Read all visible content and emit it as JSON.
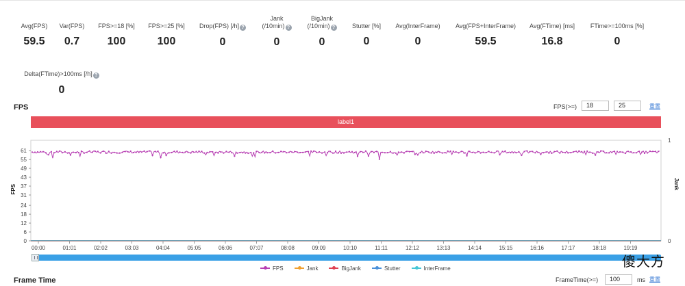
{
  "stats": [
    {
      "label": "Avg(FPS)",
      "value": "59.5",
      "help": false
    },
    {
      "label": "Var(FPS)",
      "value": "0.7",
      "help": false
    },
    {
      "label": "FPS>=18 [%]",
      "value": "100",
      "help": false
    },
    {
      "label": "FPS>=25 [%]",
      "value": "100",
      "help": false
    },
    {
      "label": "Drop(FPS) [/h]",
      "value": "0",
      "help": true
    },
    {
      "label": "Jank",
      "label2": "(/10min)",
      "value": "0",
      "help": true
    },
    {
      "label": "BigJank",
      "label2": "(/10min)",
      "value": "0",
      "help": true
    },
    {
      "label": "Stutter [%]",
      "value": "0",
      "help": false
    },
    {
      "label": "Avg(InterFrame)",
      "value": "0",
      "help": false
    },
    {
      "label": "Avg(FPS+InterFrame)",
      "value": "59.5",
      "help": false
    },
    {
      "label": "Avg(FTime) [ms]",
      "value": "16.8",
      "help": false
    },
    {
      "label": "FTime>=100ms [%]",
      "value": "0",
      "help": false
    },
    {
      "label": "Delta(FTime)>100ms [/h]",
      "value": "0",
      "help": true
    }
  ],
  "help_glyph": "?",
  "fps_section": {
    "title": "FPS",
    "threshold_label": "FPS(>=)",
    "threshold_1": "18",
    "threshold_2": "25",
    "reset_link": "重置",
    "label_band": "label1"
  },
  "chart_data": {
    "type": "line",
    "ylabel": "FPS",
    "y2label": "Jank",
    "yticks": [
      0,
      6,
      12,
      18,
      24,
      31,
      37,
      43,
      49,
      55,
      61
    ],
    "ylim": [
      0,
      68
    ],
    "y2ticks": [
      0,
      1
    ],
    "xticks": [
      "00:00",
      "01:01",
      "02:02",
      "03:03",
      "04:04",
      "05:05",
      "06:06",
      "07:07",
      "08:08",
      "09:09",
      "10:10",
      "11:11",
      "12:12",
      "13:13",
      "14:14",
      "15:15",
      "16:16",
      "17:17",
      "18:18",
      "19:19"
    ],
    "series": [
      {
        "name": "FPS",
        "color": "#b73fb3",
        "base_value": 60,
        "min_dip": 55
      },
      {
        "name": "Jank",
        "color": "#f0a030",
        "base_value": 0
      },
      {
        "name": "BigJank",
        "color": "#e04050",
        "base_value": 0
      },
      {
        "name": "Stutter",
        "color": "#4a90d9",
        "base_value": 0
      },
      {
        "name": "InterFrame",
        "color": "#46c6d6",
        "base_value": 0
      }
    ],
    "legend_position": "bottom"
  },
  "frame_time_section": {
    "title": "Frame Time",
    "threshold_label": "FrameTime(>=)",
    "threshold": "100",
    "unit": "ms",
    "reset_link": "重置"
  },
  "watermark": "傻大方"
}
